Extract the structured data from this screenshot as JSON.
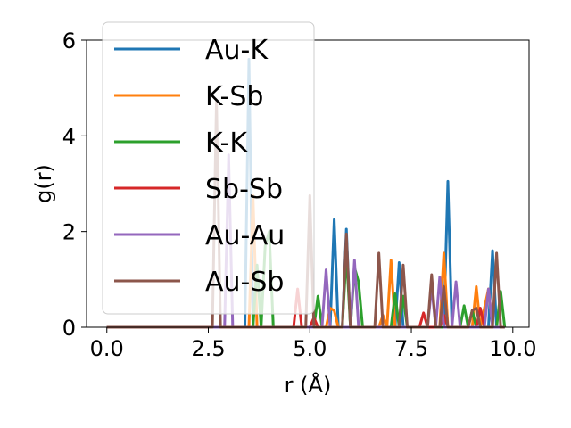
{
  "chart_data": {
    "type": "line",
    "xlabel": "r (Å)",
    "ylabel": "g(r)",
    "xlim": [
      -0.5,
      10.4
    ],
    "ylim": [
      0,
      6
    ],
    "xticks": [
      "0.0",
      "2.5",
      "5.0",
      "7.5",
      "10.0"
    ],
    "xtick_values": [
      0,
      2.5,
      5,
      7.5,
      10
    ],
    "yticks": [
      "0",
      "2",
      "4",
      "6"
    ],
    "ytick_values": [
      0,
      2,
      4,
      6
    ],
    "grid": false,
    "legend_position": "top-left",
    "series": [
      {
        "name": "Au-K",
        "color": "#1f77b4",
        "points": [
          [
            0,
            0
          ],
          [
            3.4,
            0
          ],
          [
            3.5,
            5.6
          ],
          [
            3.6,
            0
          ],
          [
            5.5,
            0
          ],
          [
            5.6,
            2.25
          ],
          [
            5.7,
            0
          ],
          [
            5.8,
            0
          ],
          [
            5.9,
            2.05
          ],
          [
            6.0,
            0
          ],
          [
            7.1,
            0
          ],
          [
            7.2,
            1.35
          ],
          [
            7.3,
            0
          ],
          [
            8.3,
            0
          ],
          [
            8.4,
            3.05
          ],
          [
            8.5,
            0
          ],
          [
            9.4,
            0
          ],
          [
            9.5,
            1.6
          ],
          [
            9.6,
            0
          ],
          [
            9.8,
            0
          ]
        ]
      },
      {
        "name": "K-Sb",
        "color": "#ff7f0e",
        "points": [
          [
            0,
            0
          ],
          [
            3.5,
            0
          ],
          [
            3.6,
            2.75
          ],
          [
            3.7,
            0
          ],
          [
            5.4,
            0
          ],
          [
            5.5,
            0.4
          ],
          [
            5.6,
            0.35
          ],
          [
            5.7,
            0
          ],
          [
            6.7,
            0
          ],
          [
            6.8,
            0.25
          ],
          [
            6.9,
            0
          ],
          [
            7.0,
            1.4
          ],
          [
            7.1,
            0
          ],
          [
            8.2,
            0
          ],
          [
            8.3,
            1.55
          ],
          [
            8.4,
            0
          ],
          [
            9.0,
            0
          ],
          [
            9.1,
            0.85
          ],
          [
            9.2,
            0
          ],
          [
            9.4,
            0.8
          ],
          [
            9.5,
            0
          ],
          [
            9.7,
            0
          ]
        ]
      },
      {
        "name": "K-K",
        "color": "#2ca02c",
        "points": [
          [
            0,
            0
          ],
          [
            3.6,
            0
          ],
          [
            3.7,
            1.3
          ],
          [
            3.8,
            0.0
          ],
          [
            3.9,
            1.7
          ],
          [
            4.0,
            2.0
          ],
          [
            4.1,
            0
          ],
          [
            5.1,
            0
          ],
          [
            5.2,
            0.65
          ],
          [
            5.3,
            0
          ],
          [
            5.8,
            0
          ],
          [
            5.9,
            1.55
          ],
          [
            6.0,
            0
          ],
          [
            6.1,
            1.25
          ],
          [
            6.2,
            0.95
          ],
          [
            6.3,
            0
          ],
          [
            7.0,
            0
          ],
          [
            7.1,
            0.7
          ],
          [
            7.2,
            0
          ],
          [
            7.3,
            0.65
          ],
          [
            7.4,
            0
          ],
          [
            8.7,
            0
          ],
          [
            8.8,
            0.45
          ],
          [
            8.9,
            0
          ],
          [
            9.0,
            0.35
          ],
          [
            9.1,
            0
          ],
          [
            9.6,
            0
          ],
          [
            9.7,
            0.75
          ],
          [
            9.8,
            0
          ]
        ]
      },
      {
        "name": "Sb-Sb",
        "color": "#d62728",
        "points": [
          [
            0,
            0
          ],
          [
            4.6,
            0
          ],
          [
            4.7,
            0.8
          ],
          [
            4.8,
            0
          ],
          [
            5.0,
            0
          ],
          [
            5.1,
            0.2
          ],
          [
            5.2,
            0
          ],
          [
            7.7,
            0
          ],
          [
            7.8,
            0.3
          ],
          [
            7.9,
            0
          ],
          [
            8.2,
            0
          ],
          [
            8.3,
            0.25
          ],
          [
            8.4,
            0
          ],
          [
            9.1,
            0
          ],
          [
            9.2,
            0.4
          ],
          [
            9.3,
            0
          ],
          [
            9.7,
            0
          ]
        ]
      },
      {
        "name": "Au-Au",
        "color": "#9467bd",
        "points": [
          [
            0,
            0
          ],
          [
            2.9,
            0
          ],
          [
            3.0,
            3.6
          ],
          [
            3.1,
            0
          ],
          [
            5.3,
            0
          ],
          [
            5.4,
            1.2
          ],
          [
            5.5,
            0
          ],
          [
            6.0,
            0
          ],
          [
            6.1,
            1.4
          ],
          [
            6.2,
            0
          ],
          [
            6.5,
            0
          ],
          [
            7.9,
            0
          ],
          [
            8.0,
            0.85
          ],
          [
            8.1,
            0
          ],
          [
            8.2,
            1.05
          ],
          [
            8.3,
            0
          ],
          [
            8.5,
            0
          ],
          [
            8.6,
            0.95
          ],
          [
            8.7,
            0
          ],
          [
            9.3,
            0
          ],
          [
            9.4,
            0.8
          ],
          [
            9.5,
            0
          ],
          [
            9.8,
            0
          ]
        ]
      },
      {
        "name": "Au-Sb",
        "color": "#8c564b",
        "points": [
          [
            0,
            0
          ],
          [
            2.6,
            0
          ],
          [
            2.7,
            4.75
          ],
          [
            2.8,
            0
          ],
          [
            4.9,
            0
          ],
          [
            5.0,
            2.75
          ],
          [
            5.1,
            0
          ],
          [
            5.8,
            0
          ],
          [
            5.9,
            1.95
          ],
          [
            6.0,
            0
          ],
          [
            6.6,
            0
          ],
          [
            6.7,
            1.55
          ],
          [
            6.8,
            0
          ],
          [
            7.2,
            0
          ],
          [
            7.3,
            1.3
          ],
          [
            7.4,
            0
          ],
          [
            7.9,
            0
          ],
          [
            8.0,
            1.1
          ],
          [
            8.1,
            0
          ],
          [
            8.2,
            0
          ],
          [
            8.3,
            0.85
          ],
          [
            8.4,
            0
          ],
          [
            8.9,
            0
          ],
          [
            9.0,
            0.35
          ],
          [
            9.1,
            0.4
          ],
          [
            9.2,
            0
          ],
          [
            9.5,
            0
          ],
          [
            9.6,
            1.55
          ],
          [
            9.7,
            0
          ],
          [
            9.8,
            0
          ]
        ]
      }
    ]
  }
}
